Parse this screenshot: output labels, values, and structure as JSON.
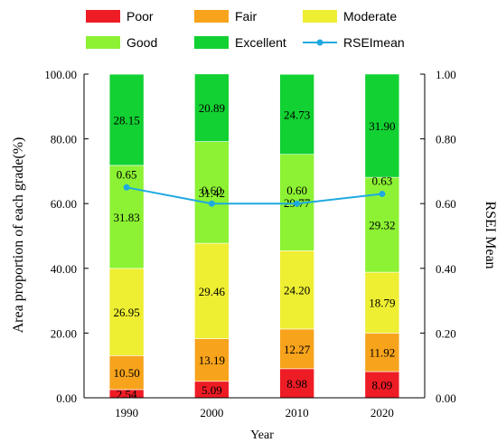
{
  "chart_data": {
    "type": "bar",
    "stacked": true,
    "categories": [
      "1990",
      "2000",
      "2010",
      "2020"
    ],
    "xlabel": "Year",
    "ylabel": "Area proportion of each grade(%)",
    "y2label": "RSEI Mean",
    "ylim": [
      0,
      100
    ],
    "y2lim": [
      0,
      1
    ],
    "yticks": [
      "0.00",
      "20.00",
      "40.00",
      "60.00",
      "80.00",
      "100.00"
    ],
    "y2ticks": [
      "0.00",
      "0.20",
      "0.40",
      "0.60",
      "0.80",
      "1.00"
    ],
    "grid": false,
    "legend_position": "top",
    "series": [
      {
        "name": "Poor",
        "color": "#ee1c25",
        "values": [
          2.54,
          5.09,
          8.98,
          8.09
        ],
        "labels": [
          "2.54",
          "5.09",
          "8.98",
          "8.09"
        ]
      },
      {
        "name": "Fair",
        "color": "#f7a31c",
        "values": [
          10.5,
          13.19,
          12.27,
          11.92
        ],
        "labels": [
          "10.50",
          "13.19",
          "12.27",
          "11.92"
        ]
      },
      {
        "name": "Moderate",
        "color": "#eeee33",
        "values": [
          26.95,
          29.46,
          24.2,
          18.79
        ],
        "labels": [
          "26.95",
          "29.46",
          "24.20",
          "18.79"
        ]
      },
      {
        "name": "Good",
        "color": "#8cf233",
        "values": [
          31.83,
          31.42,
          29.77,
          29.32
        ],
        "labels": [
          "31.83",
          "31.42",
          "29.77",
          "29.32"
        ]
      },
      {
        "name": "Excellent",
        "color": "#12d132",
        "values": [
          28.15,
          20.89,
          24.73,
          31.9
        ],
        "labels": [
          "28.15",
          "20.89",
          "24.73",
          "31.90"
        ]
      }
    ],
    "line_series": {
      "name": "RSEImean",
      "color": "#1ea9e1",
      "axis": "right",
      "values": [
        0.65,
        0.6,
        0.6,
        0.63
      ],
      "labels": [
        "0.65",
        "0.60",
        "0.60",
        "0.63"
      ]
    }
  }
}
